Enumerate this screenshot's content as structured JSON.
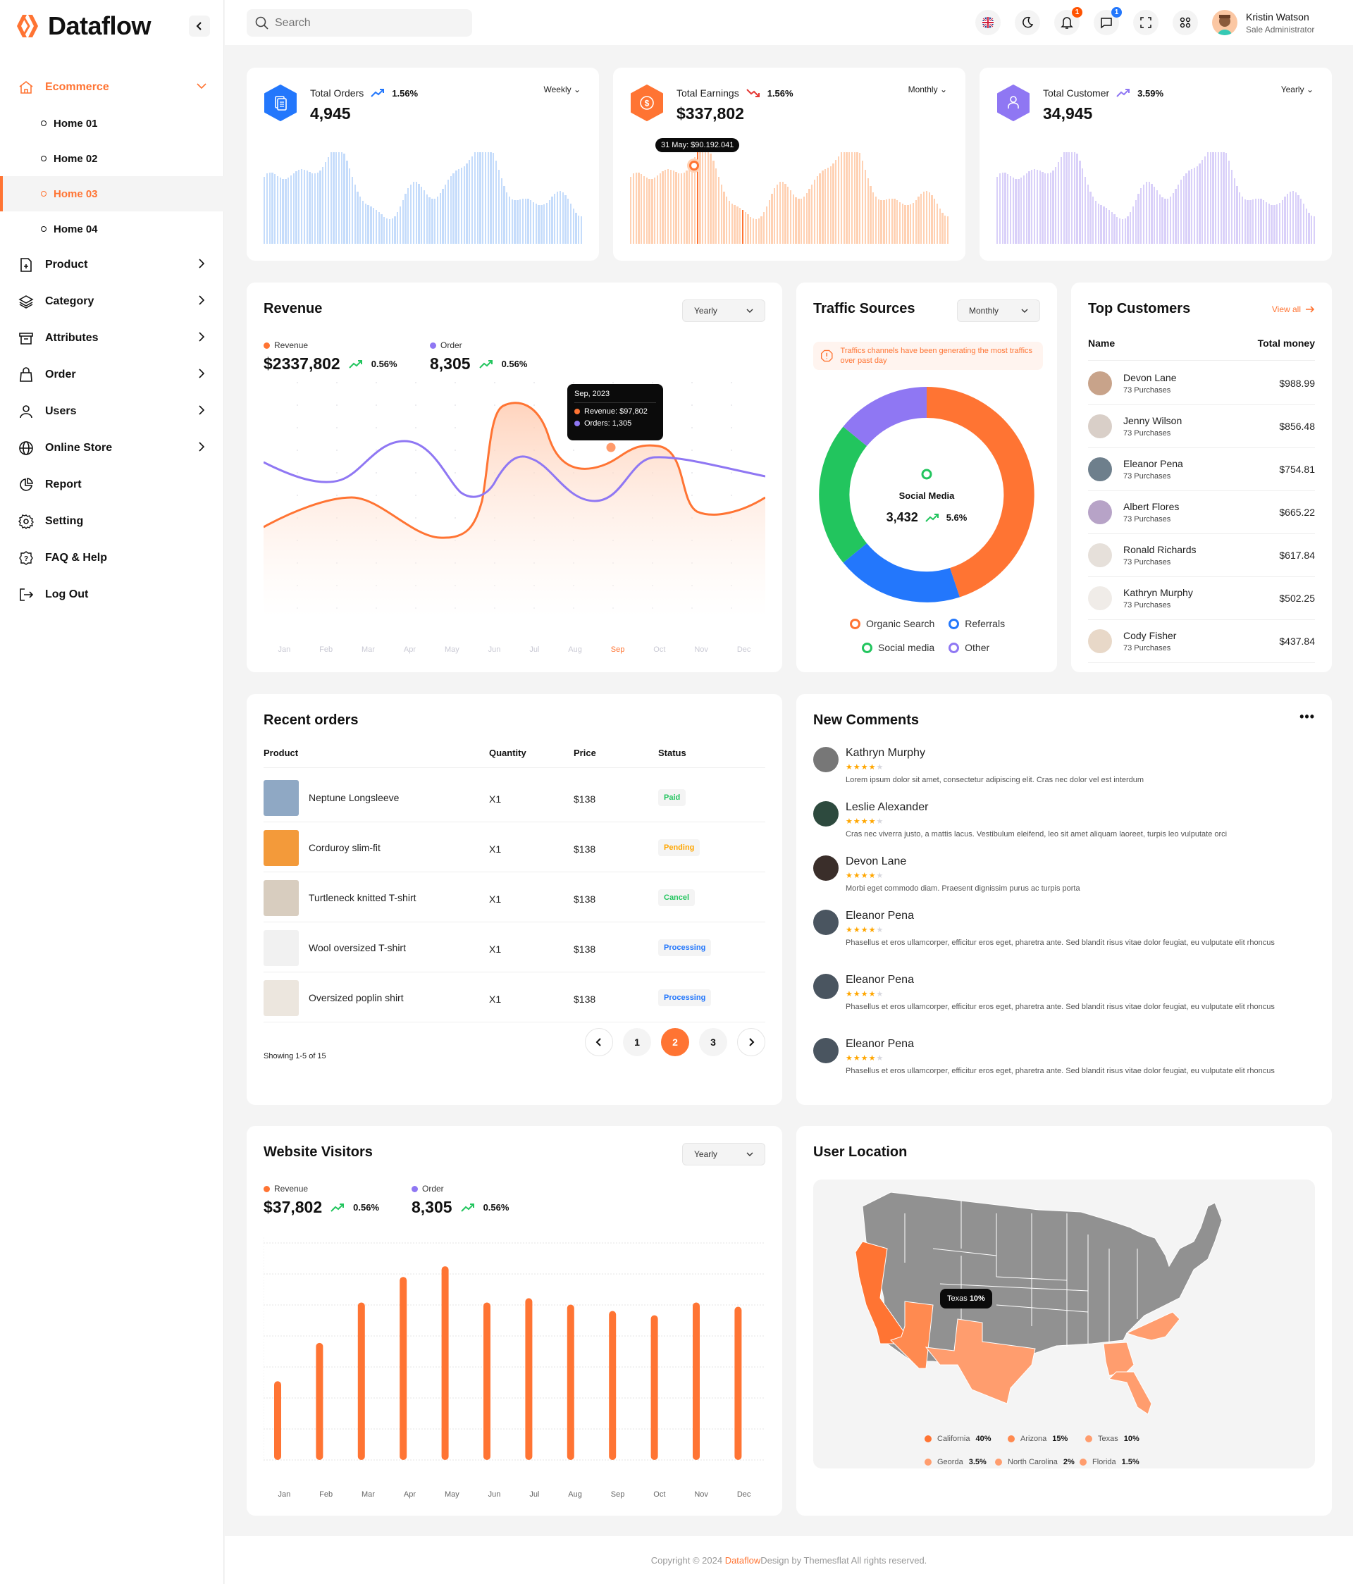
{
  "brand": {
    "name": "Dataflow",
    "accent": "#ff7433"
  },
  "search": {
    "placeholder": "Search"
  },
  "topbar": {
    "notifications_count": "1",
    "messages_count": "1",
    "user": {
      "name": "Kristin Watson",
      "role": "Sale Administrator"
    }
  },
  "sidebar": {
    "ecommerce": {
      "label": "Ecommerce",
      "children": [
        {
          "label": "Home 01"
        },
        {
          "label": "Home 02"
        },
        {
          "label": "Home 03"
        },
        {
          "label": "Home 04"
        }
      ]
    },
    "items": [
      {
        "label": "Product",
        "icon": "file-plus-icon"
      },
      {
        "label": "Category",
        "icon": "layers-icon"
      },
      {
        "label": "Attributes",
        "icon": "archive-icon"
      },
      {
        "label": "Order",
        "icon": "shopping-bag-icon"
      },
      {
        "label": "Users",
        "icon": "user-icon"
      },
      {
        "label": "Online Store",
        "icon": "globe-icon"
      },
      {
        "label": "Report",
        "icon": "pie-chart-icon"
      },
      {
        "label": "Setting",
        "icon": "gear-icon"
      },
      {
        "label": "FAQ & Help",
        "icon": "help-icon"
      },
      {
        "label": "Log Out",
        "icon": "logout-icon"
      }
    ]
  },
  "stats": [
    {
      "label": "Total Orders",
      "change": "1.56%",
      "trend": "up",
      "value": "4,945",
      "period": "Weekly",
      "color": "#2377fc",
      "bar_color": "#c5dcfb"
    },
    {
      "label": "Total Earnings",
      "change": "1.56%",
      "trend": "down",
      "value": "$337,802",
      "period": "Monthly",
      "color": "#ff7433",
      "bar_color": "#ffd1b3",
      "tooltip": "31 May: $90.192.041"
    },
    {
      "label": "Total Customer",
      "change": "3.59%",
      "trend": "up",
      "value": "34,945",
      "period": "Yearly",
      "color": "#8f77f3",
      "bar_color": "#d9d0f9"
    }
  ],
  "revenue": {
    "title": "Revenue",
    "period": "Yearly",
    "revenue": {
      "label": "Revenue",
      "value": "$2337,802",
      "change": "0.56%"
    },
    "order": {
      "label": "Order",
      "value": "8,305",
      "change": "0.56%"
    },
    "tooltip": {
      "title": "Sep, 2023",
      "revenue": "Revenue: $97,802",
      "orders": "Orders: 1,305"
    },
    "months": [
      "Jan",
      "Feb",
      "Mar",
      "Apr",
      "May",
      "Jun",
      "Jul",
      "Aug",
      "Sep",
      "Oct",
      "Nov",
      "Dec"
    ],
    "active_month": "Sep"
  },
  "traffic": {
    "title": "Traffic Sources",
    "period": "Monthly",
    "alert": "Traffics channels have been generating the most traffics over past day",
    "center_label": "Social Media",
    "center_value": "3,432",
    "center_change": "5.6%",
    "legend": [
      {
        "label": "Organic Search",
        "color": "#ff7433"
      },
      {
        "label": "Referrals",
        "color": "#2377fc"
      },
      {
        "label": "Social media",
        "color": "#22c55e"
      },
      {
        "label": "Other",
        "color": "#8f77f3"
      }
    ]
  },
  "top_customers": {
    "title": "Top Customers",
    "view_all": "View all",
    "col_name": "Name",
    "col_money": "Total money",
    "rows": [
      {
        "name": "Devon Lane",
        "purchases": "73 Purchases",
        "money": "$988.99"
      },
      {
        "name": "Jenny Wilson",
        "purchases": "73 Purchases",
        "money": "$856.48"
      },
      {
        "name": "Eleanor Pena",
        "purchases": "73 Purchases",
        "money": "$754.81"
      },
      {
        "name": "Albert Flores",
        "purchases": "73 Purchases",
        "money": "$665.22"
      },
      {
        "name": "Ronald Richards",
        "purchases": "73 Purchases",
        "money": "$617.84"
      },
      {
        "name": "Kathryn Murphy",
        "purchases": "73 Purchases",
        "money": "$502.25"
      },
      {
        "name": "Cody Fisher",
        "purchases": "73 Purchases",
        "money": "$437.84"
      }
    ]
  },
  "recent_orders": {
    "title": "Recent orders",
    "columns": [
      "Product",
      "Quantity",
      "Price",
      "Status"
    ],
    "rows": [
      {
        "product": "Neptune Longsleeve",
        "qty": "X1",
        "price": "$138",
        "status": "Paid",
        "status_color": "#22c55e"
      },
      {
        "product": "Corduroy slim-fit",
        "qty": "X1",
        "price": "$138",
        "status": "Pending",
        "status_color": "#ffa600"
      },
      {
        "product": "Turtleneck knitted T-shirt",
        "qty": "X1",
        "price": "$138",
        "status": "Cancel",
        "status_color": "#22c55e"
      },
      {
        "product": "Wool oversized T-shirt",
        "qty": "X1",
        "price": "$138",
        "status": "Processing",
        "status_color": "#2377fc"
      },
      {
        "product": "Oversized poplin shirt",
        "qty": "X1",
        "price": "$138",
        "status": "Processing",
        "status_color": "#2377fc"
      }
    ],
    "showing": "Showing 1-5 of 15",
    "pages": [
      "1",
      "2",
      "3"
    ],
    "current_page": "2"
  },
  "comments": {
    "title": "New Comments",
    "items": [
      {
        "name": "Kathryn Murphy",
        "rating": 4,
        "text": "Lorem ipsum dolor sit amet, consectetur adipiscing elit. Cras nec dolor vel est interdum"
      },
      {
        "name": "Leslie Alexander",
        "rating": 4,
        "text": "Cras nec viverra justo, a mattis lacus. Vestibulum eleifend, leo sit amet aliquam laoreet, turpis leo vulputate orci"
      },
      {
        "name": "Devon Lane",
        "rating": 4,
        "text": "Morbi eget commodo diam. Praesent dignissim purus ac turpis porta"
      },
      {
        "name": "Eleanor Pena",
        "rating": 4,
        "text": "Phasellus et eros ullamcorper, efficitur eros eget, pharetra ante. Sed blandit risus vitae dolor feugiat, eu vulputate elit rhoncus"
      },
      {
        "name": "Eleanor Pena",
        "rating": 4,
        "text": "Phasellus et eros ullamcorper, efficitur eros eget, pharetra ante. Sed blandit risus vitae dolor feugiat, eu vulputate elit rhoncus"
      },
      {
        "name": "Eleanor Pena",
        "rating": 4,
        "text": "Phasellus et eros ullamcorper, efficitur eros eget, pharetra ante. Sed blandit risus vitae dolor feugiat, eu vulputate elit rhoncus"
      }
    ]
  },
  "visitors": {
    "title": "Website Visitors",
    "period": "Yearly",
    "revenue": {
      "label": "Revenue",
      "value": "$37,802",
      "change": "0.56%"
    },
    "order": {
      "label": "Order",
      "value": "8,305",
      "change": "0.56%"
    }
  },
  "location": {
    "title": "User Location",
    "tooltip_state": "Texas",
    "tooltip_value": "10%",
    "legend": [
      {
        "state": "California",
        "value": "40%",
        "color": "#ff7433"
      },
      {
        "state": "Arizona",
        "value": "15%",
        "color": "#ff8a50"
      },
      {
        "state": "Texas",
        "value": "10%",
        "color": "#ff9d6e"
      },
      {
        "state": "Georda",
        "value": "3.5%",
        "color": "#ff9d6e"
      },
      {
        "state": "North Carolina",
        "value": "2%",
        "color": "#ff9d6e"
      },
      {
        "state": "Florida",
        "value": "1.5%",
        "color": "#ff9d6e"
      }
    ]
  },
  "footer": {
    "prefix": "Copyright © 2024 ",
    "brand": "Dataflow",
    "suffix": " Design by Themesflat All rights reserved."
  },
  "chart_data": [
    {
      "type": "line",
      "title": "Revenue",
      "categories": [
        "Jan",
        "Feb",
        "Mar",
        "Apr",
        "May",
        "Jun",
        "Jul",
        "Aug",
        "Sep",
        "Oct",
        "Nov",
        "Dec"
      ],
      "series": [
        {
          "name": "Revenue",
          "values": [
            42,
            52,
            44,
            36,
            92,
            80,
            66,
            72,
            70,
            46,
            50,
            58
          ]
        },
        {
          "name": "Order",
          "values": [
            68,
            60,
            78,
            58,
            70,
            62,
            54,
            64,
            56,
            72,
            62,
            64
          ]
        }
      ],
      "annotation": "Sep, 2023 — Revenue: $97,802, Orders: 1,305"
    },
    {
      "type": "pie",
      "title": "Traffic Sources",
      "categories": [
        "Organic Search",
        "Referrals",
        "Social media",
        "Other"
      ],
      "values": [
        43,
        20,
        22,
        15
      ]
    },
    {
      "type": "bar",
      "title": "Website Visitors",
      "categories": [
        "Jan",
        "Feb",
        "Mar",
        "Apr",
        "May",
        "Jun",
        "Jul",
        "Aug",
        "Sep",
        "Oct",
        "Nov",
        "Dec"
      ],
      "values": [
        37,
        55,
        74,
        86,
        91,
        74,
        76,
        73,
        70,
        68,
        74,
        72
      ],
      "ylim": [
        0,
        100
      ],
      "grid": true
    }
  ]
}
